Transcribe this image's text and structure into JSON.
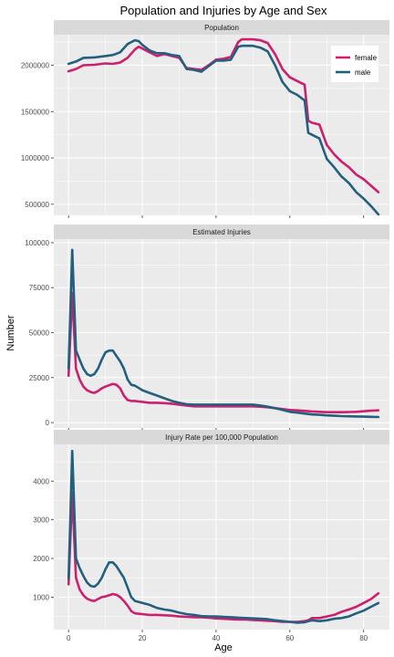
{
  "chart_data": {
    "type": "line",
    "title": "Population and Injuries by Age and Sex",
    "xlabel": "Age",
    "ylabel": "Number",
    "xlim": [
      -4,
      87
    ],
    "x_ticks": [
      0,
      20,
      40,
      60,
      80
    ],
    "legend": {
      "placement": "top-right",
      "panel": 0,
      "entries": [
        "female",
        "male"
      ]
    },
    "colors": {
      "female": "#cc1f6e",
      "male": "#23607f",
      "panel_bg": "#ebebeb",
      "strip_bg": "#d9d9d9",
      "grid": "#ffffff"
    },
    "panels": [
      {
        "strip": "Population",
        "ylim": [
          380000,
          2330000
        ],
        "y_ticks": [
          500000,
          1000000,
          1500000,
          2000000
        ],
        "y_tick_labels": [
          "500000",
          "1000000",
          "1500000",
          "2000000"
        ],
        "series": [
          {
            "name": "female",
            "x": [
              0,
              2,
              4,
              7,
              10,
              12,
              14,
              16,
              18,
              19,
              20,
              22,
              24,
              26,
              28,
              30,
              32,
              34,
              36,
              38,
              40,
              42,
              44,
              46,
              47,
              48,
              50,
              52,
              54,
              56,
              58,
              60,
              62,
              64,
              65,
              66,
              68,
              70,
              72,
              74,
              76,
              78,
              80,
              82,
              84
            ],
            "y": [
              1935000,
              1960000,
              2000000,
              2005000,
              2020000,
              2015000,
              2030000,
              2080000,
              2170000,
              2200000,
              2180000,
              2140000,
              2100000,
              2120000,
              2100000,
              2080000,
              1970000,
              1960000,
              1950000,
              2000000,
              2060000,
              2070000,
              2090000,
              2250000,
              2280000,
              2280000,
              2280000,
              2270000,
              2240000,
              2120000,
              1960000,
              1870000,
              1830000,
              1790000,
              1400000,
              1380000,
              1360000,
              1140000,
              1040000,
              960000,
              900000,
              820000,
              770000,
              700000,
              630000
            ]
          },
          {
            "name": "male",
            "x": [
              0,
              2,
              4,
              7,
              10,
              12,
              14,
              16,
              18,
              19,
              20,
              22,
              24,
              26,
              28,
              30,
              32,
              34,
              36,
              38,
              40,
              42,
              44,
              46,
              47,
              48,
              50,
              52,
              54,
              56,
              58,
              60,
              62,
              64,
              65,
              66,
              68,
              70,
              72,
              74,
              76,
              78,
              80,
              82,
              84
            ],
            "y": [
              2015000,
              2040000,
              2080000,
              2085000,
              2100000,
              2110000,
              2140000,
              2230000,
              2270000,
              2260000,
              2220000,
              2160000,
              2130000,
              2130000,
              2110000,
              2100000,
              1960000,
              1950000,
              1930000,
              1990000,
              2050000,
              2050000,
              2060000,
              2200000,
              2210000,
              2210000,
              2210000,
              2190000,
              2150000,
              2000000,
              1820000,
              1720000,
              1680000,
              1620000,
              1270000,
              1250000,
              1210000,
              990000,
              900000,
              800000,
              730000,
              630000,
              560000,
              480000,
              390000
            ]
          }
        ]
      },
      {
        "strip": "Estimated Injuries",
        "ylim": [
          -3000,
          102000
        ],
        "y_ticks": [
          0,
          25000,
          50000,
          75000,
          100000
        ],
        "y_tick_labels": [
          "0",
          "25000",
          "50000",
          "75000",
          "100000"
        ],
        "series": [
          {
            "name": "female",
            "x": [
              0,
              1,
              2,
              3,
              4,
              5,
              6,
              7,
              8,
              9,
              10,
              12,
              13,
              14,
              15,
              16,
              17,
              18,
              20,
              22,
              24,
              26,
              28,
              30,
              32,
              34,
              36,
              38,
              40,
              42,
              44,
              46,
              48,
              50,
              52,
              54,
              56,
              58,
              60,
              62,
              64,
              66,
              68,
              70,
              72,
              74,
              76,
              78,
              80,
              82,
              84
            ],
            "y": [
              26000,
              72000,
              30000,
              24000,
              20000,
              18000,
              17000,
              16500,
              17500,
              19000,
              20000,
              21500,
              21000,
              19000,
              15000,
              12500,
              12000,
              12000,
              11500,
              11000,
              11000,
              10800,
              10500,
              10000,
              9500,
              9000,
              9000,
              9000,
              9000,
              9000,
              9000,
              9000,
              9000,
              9000,
              8800,
              8500,
              8000,
              7500,
              7000,
              6800,
              6500,
              6200,
              6000,
              5800,
              5800,
              5800,
              5900,
              6000,
              6300,
              6600,
              6800
            ]
          },
          {
            "name": "male",
            "x": [
              0,
              1,
              2,
              3,
              4,
              5,
              6,
              7,
              8,
              9,
              10,
              11,
              12,
              13,
              14,
              15,
              16,
              17,
              18,
              20,
              22,
              24,
              26,
              28,
              30,
              32,
              34,
              36,
              38,
              40,
              42,
              44,
              46,
              48,
              50,
              52,
              54,
              56,
              58,
              60,
              62,
              64,
              66,
              68,
              70,
              72,
              74,
              76,
              78,
              80,
              82,
              84
            ],
            "y": [
              30000,
              96000,
              40000,
              35000,
              30000,
              27000,
              26000,
              27000,
              30000,
              35000,
              39000,
              40000,
              40000,
              37000,
              34000,
              30000,
              24000,
              21000,
              20500,
              18000,
              16500,
              15000,
              13500,
              12000,
              11000,
              10200,
              10000,
              10000,
              10000,
              10000,
              10000,
              10000,
              10000,
              10000,
              10000,
              9500,
              8800,
              8000,
              7000,
              6000,
              5500,
              5000,
              4500,
              4300,
              4000,
              3800,
              3600,
              3500,
              3400,
              3300,
              3200,
              3100
            ]
          }
        ]
      },
      {
        "strip": "Injury Rate per 100,000 Population",
        "ylim": [
          160,
          4950
        ],
        "y_ticks": [
          1000,
          2000,
          3000,
          4000
        ],
        "y_tick_labels": [
          "1000",
          "2000",
          "3000",
          "4000"
        ],
        "series": [
          {
            "name": "female",
            "x": [
              0,
              1,
              2,
              3,
              4,
              5,
              6,
              7,
              8,
              9,
              10,
              12,
              13,
              14,
              15,
              16,
              17,
              18,
              20,
              22,
              24,
              26,
              28,
              30,
              32,
              34,
              36,
              38,
              40,
              42,
              44,
              46,
              48,
              50,
              52,
              54,
              56,
              58,
              60,
              62,
              64,
              65,
              66,
              68,
              70,
              72,
              74,
              76,
              78,
              80,
              82,
              84
            ],
            "y": [
              1330,
              3700,
              1500,
              1200,
              1050,
              960,
              920,
              900,
              950,
              1000,
              1020,
              1080,
              1060,
              1000,
              900,
              780,
              640,
              580,
              560,
              540,
              540,
              530,
              520,
              500,
              490,
              480,
              480,
              470,
              450,
              440,
              430,
              420,
              420,
              410,
              400,
              390,
              380,
              360,
              360,
              360,
              380,
              400,
              460,
              460,
              500,
              540,
              620,
              680,
              750,
              850,
              950,
              1100
            ]
          },
          {
            "name": "male",
            "x": [
              0,
              1,
              2,
              3,
              4,
              5,
              6,
              7,
              8,
              9,
              10,
              11,
              12,
              13,
              14,
              15,
              16,
              17,
              18,
              20,
              22,
              24,
              26,
              28,
              30,
              32,
              34,
              36,
              38,
              40,
              42,
              44,
              46,
              48,
              50,
              52,
              54,
              56,
              58,
              60,
              62,
              64,
              65,
              66,
              68,
              70,
              72,
              74,
              76,
              78,
              80,
              82,
              84
            ],
            "y": [
              1480,
              4780,
              2000,
              1750,
              1550,
              1380,
              1290,
              1270,
              1350,
              1500,
              1720,
              1900,
              1900,
              1800,
              1650,
              1500,
              1250,
              1000,
              900,
              850,
              800,
              720,
              680,
              650,
              600,
              560,
              540,
              510,
              500,
              500,
              490,
              480,
              470,
              460,
              450,
              440,
              430,
              400,
              380,
              360,
              340,
              350,
              380,
              400,
              380,
              400,
              440,
              460,
              500,
              580,
              650,
              750,
              850
            ]
          }
        ]
      }
    ]
  }
}
